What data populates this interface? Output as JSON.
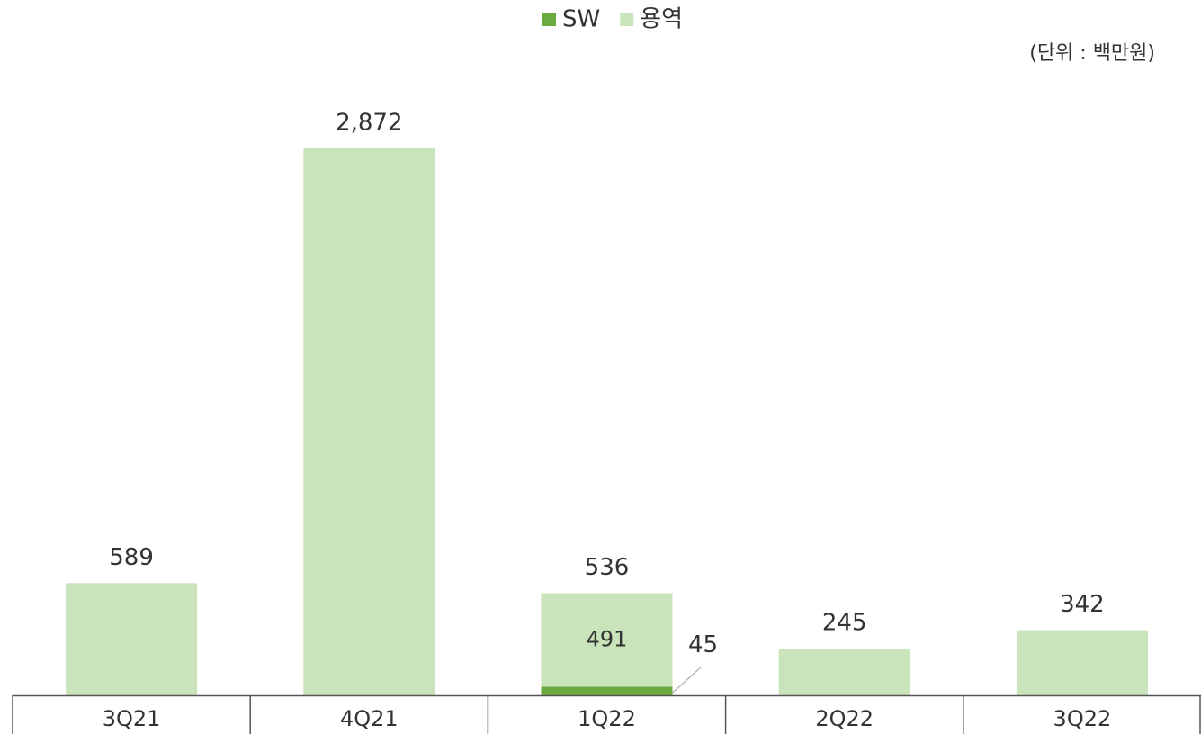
{
  "chart_data": {
    "type": "stacked_bar",
    "unit": "(단위 : 백만원)",
    "categories": [
      "3Q21",
      "4Q21",
      "1Q22",
      "2Q22",
      "3Q22"
    ],
    "series": [
      {
        "name": "SW",
        "color": "#6aaa3e",
        "values": [
          null,
          null,
          45,
          null,
          null
        ]
      },
      {
        "name": "용역",
        "color": "#c9e4bb",
        "values": [
          589,
          2872,
          491,
          245,
          342
        ]
      }
    ],
    "totals": [
      589,
      2872,
      536,
      245,
      342
    ],
    "total_labels": [
      "589",
      "2,872",
      "536",
      "245",
      "342"
    ],
    "ylim": [
      0,
      3000
    ],
    "legend": "top"
  }
}
